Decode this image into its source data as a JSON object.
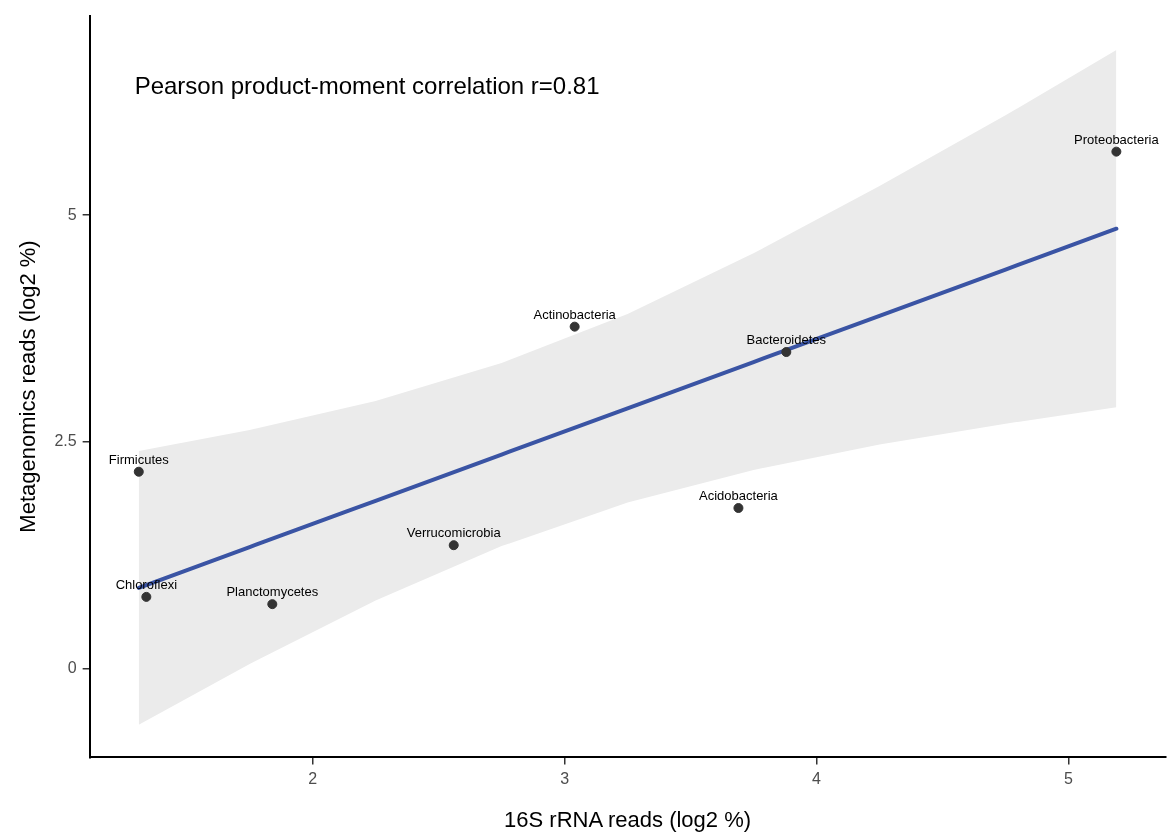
{
  "chart_data": {
    "type": "scatter",
    "xlabel": "16S rRNA reads (log2 %)",
    "ylabel": "Metagenomics reads (log2 %)",
    "xlim": [
      1.115,
      5.385
    ],
    "xticks": [
      2,
      3,
      4,
      5
    ],
    "ylim": [
      -0.98,
      7.2
    ],
    "yticks": [
      0,
      2.5,
      5
    ],
    "grid": false,
    "legend": false,
    "marker": "circle",
    "line_style": "solid",
    "series": [
      {
        "color": "#333333",
        "x": [
          5.19,
          3.04,
          3.88,
          1.31,
          3.69,
          2.56,
          1.34,
          1.84
        ],
        "values": [
          5.7,
          3.77,
          3.49,
          2.17,
          1.77,
          1.36,
          0.79,
          0.71
        ]
      },
      {
        "type": "line",
        "marker": "none",
        "color": "#3a54a4",
        "x": [
          1.31,
          1.75,
          2.25,
          2.75,
          3.25,
          3.75,
          4.25,
          4.75,
          5.19
        ],
        "values": [
          0.89,
          1.34,
          1.85,
          2.36,
          2.87,
          3.38,
          3.89,
          4.4,
          4.85
        ],
        "lower": [
          -0.62,
          0.05,
          0.75,
          1.35,
          1.83,
          2.19,
          2.47,
          2.7,
          2.88
        ],
        "upper": [
          2.4,
          2.63,
          2.95,
          3.37,
          3.91,
          4.58,
          5.32,
          6.1,
          6.82
        ]
      }
    ],
    "annotations": [
      "Pearson product-moment correlation r=0.81",
      {
        "text": "Proteobacteria",
        "x": 5.19,
        "y": 5.7
      },
      {
        "text": "Actinobacteria",
        "x": 3.04,
        "y": 3.77
      },
      {
        "text": "Bacteroidetes",
        "x": 3.88,
        "y": 3.49
      },
      {
        "text": "Firmicutes",
        "x": 1.31,
        "y": 2.17
      },
      {
        "text": "Acidobacteria",
        "x": 3.69,
        "y": 1.77
      },
      {
        "text": "Verrucomicrobia",
        "x": 2.56,
        "y": 1.36
      },
      {
        "text": "Chloroflexi",
        "x": 1.34,
        "y": 0.79
      },
      {
        "text": "Planctomycetes",
        "x": 1.84,
        "y": 0.71
      }
    ]
  }
}
